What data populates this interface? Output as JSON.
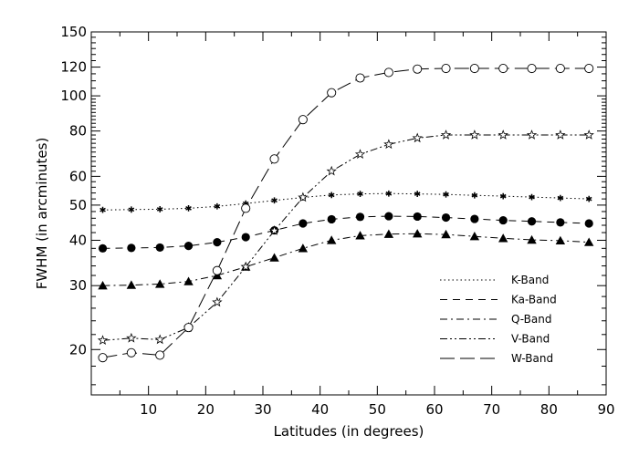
{
  "chart_data": {
    "type": "line",
    "xlabel": "Latitudes (in degrees)",
    "ylabel": "FWHM (in arcminutes)",
    "xlim": [
      0,
      90
    ],
    "ylim": [
      15,
      150
    ],
    "y_scale": "log",
    "grid": false,
    "legend_position": "bottom-right",
    "x_ticks": [
      10,
      20,
      30,
      40,
      50,
      60,
      70,
      80,
      90
    ],
    "x_tick_labels": [
      "10",
      "20",
      "30",
      "40",
      "50",
      "60",
      "70",
      "80",
      "90"
    ],
    "y_ticks": [
      20,
      30,
      40,
      50,
      60,
      80,
      100,
      120,
      150
    ],
    "y_tick_labels": [
      "20",
      "30",
      "40",
      "50",
      "60",
      "80",
      "100",
      "120",
      "150"
    ],
    "x": [
      2,
      7,
      12,
      17,
      22,
      27,
      32,
      37,
      42,
      47,
      52,
      57,
      62,
      67,
      72,
      77,
      82,
      87
    ],
    "series": [
      {
        "name": "K-Band",
        "line_style": "dotted",
        "marker": "asterisk",
        "values": [
          48.5,
          48.6,
          48.7,
          49.0,
          49.6,
          50.5,
          51.5,
          52.5,
          53.3,
          53.7,
          53.8,
          53.7,
          53.5,
          53.2,
          52.9,
          52.6,
          52.3,
          52.0
        ]
      },
      {
        "name": "Ka-Band",
        "line_style": "dashed",
        "marker": "filled-circle",
        "values": [
          38.0,
          38.1,
          38.2,
          38.6,
          39.5,
          40.8,
          42.6,
          44.5,
          45.7,
          46.4,
          46.6,
          46.5,
          46.2,
          45.8,
          45.4,
          45.1,
          44.8,
          44.5
        ]
      },
      {
        "name": "Q-Band",
        "line_style": "dash-dot",
        "marker": "filled-triangle",
        "values": [
          30.0,
          30.1,
          30.3,
          30.8,
          32.0,
          33.8,
          35.8,
          38.0,
          40.0,
          41.2,
          41.6,
          41.7,
          41.5,
          41.0,
          40.5,
          40.1,
          39.9,
          39.5
        ]
      },
      {
        "name": "V-Band",
        "line_style": "dash-dot-dot",
        "marker": "star",
        "values": [
          21.2,
          21.5,
          21.3,
          23.0,
          27.0,
          33.8,
          42.5,
          52.5,
          62.0,
          69.0,
          73.5,
          76.5,
          78.0,
          78.0,
          78.0,
          78.0,
          78.0,
          78.0
        ]
      },
      {
        "name": "W-Band",
        "line_style": "long-dash",
        "marker": "open-circle",
        "values": [
          19.0,
          19.6,
          19.3,
          23.0,
          33.0,
          49.0,
          67.0,
          86.0,
          102.0,
          112.0,
          116.0,
          118.5,
          119.0,
          119.0,
          119.0,
          119.0,
          119.0,
          119.0
        ]
      }
    ]
  }
}
